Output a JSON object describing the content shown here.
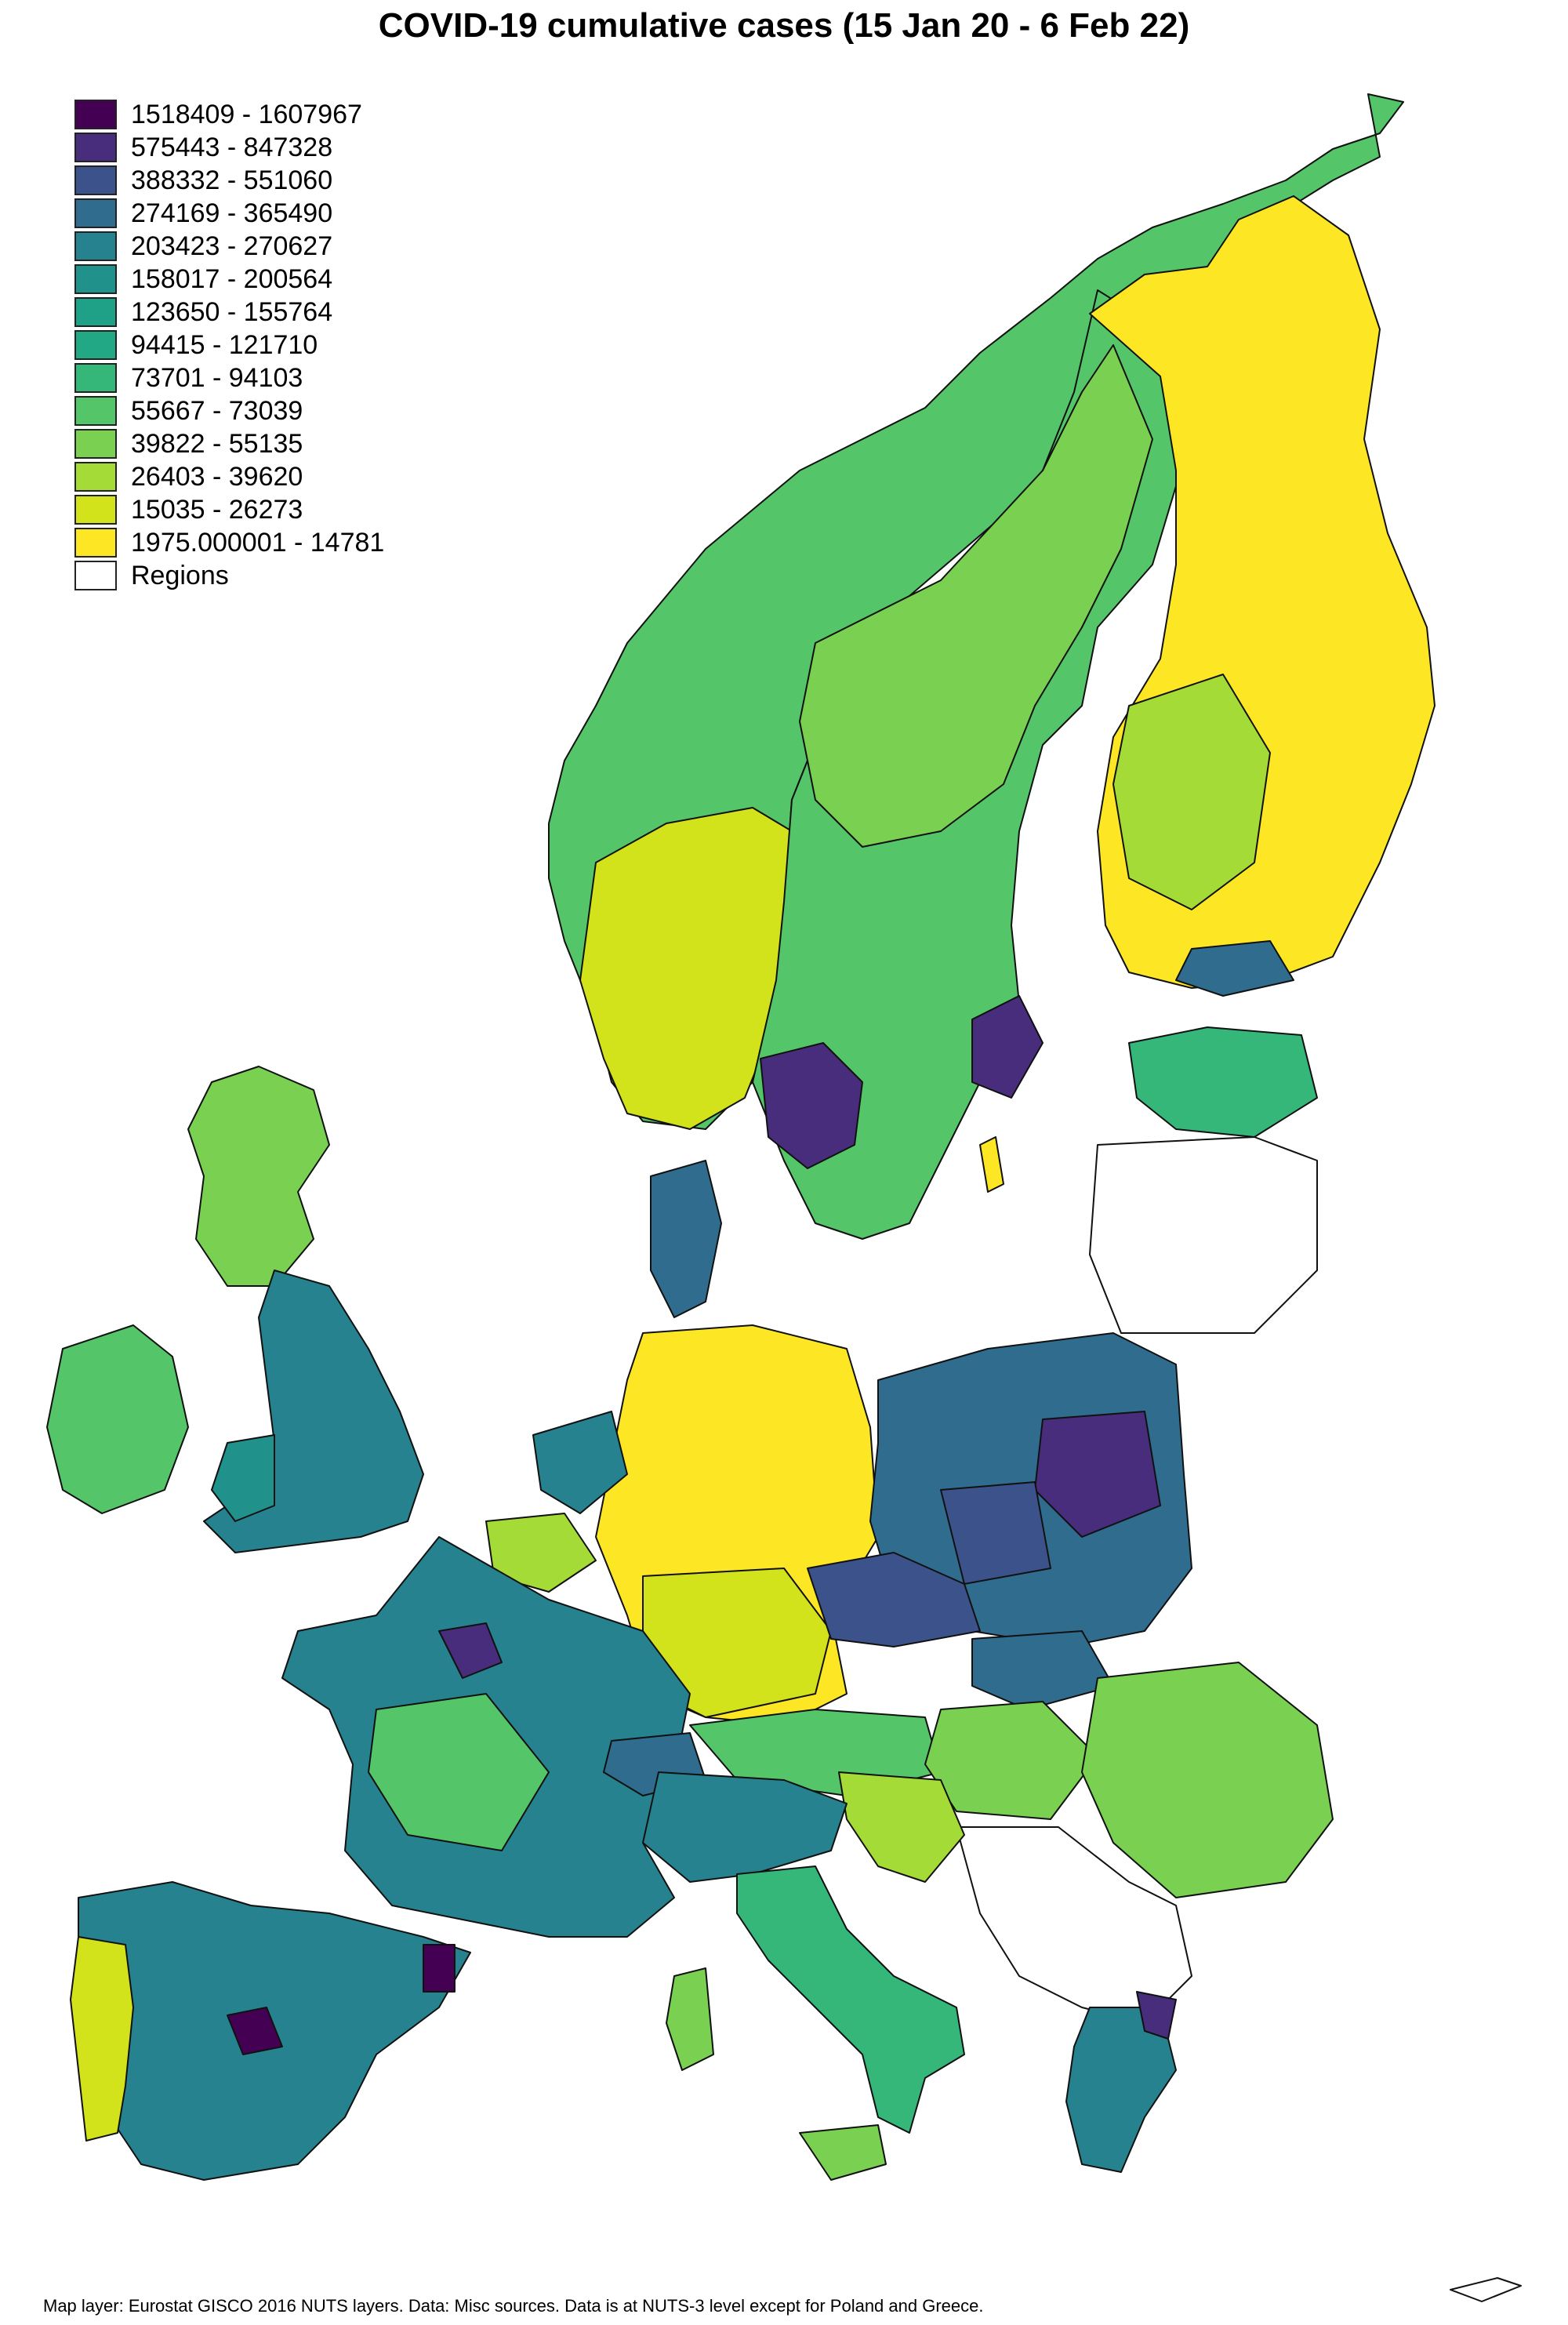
{
  "title": "COVID-19 cumulative cases (15 Jan 20 -  6 Feb 22)",
  "legend": [
    {
      "label": "1518409 - 1607967",
      "color": "#440154"
    },
    {
      "label": "575443 - 847328",
      "color": "#472d7b"
    },
    {
      "label": "388332 - 551060",
      "color": "#3b528b"
    },
    {
      "label": "274169 - 365490",
      "color": "#2f6c8e"
    },
    {
      "label": "203423 - 270627",
      "color": "#26828e"
    },
    {
      "label": "158017 - 200564",
      "color": "#21918c"
    },
    {
      "label": "123650 - 155764",
      "color": "#1fa187"
    },
    {
      "label": "94415 - 121710",
      "color": "#22a884"
    },
    {
      "label": "73701 - 94103",
      "color": "#35b779"
    },
    {
      "label": "55667 - 73039",
      "color": "#54c568"
    },
    {
      "label": "39822 - 55135",
      "color": "#7ad151"
    },
    {
      "label": "26403 - 39620",
      "color": "#a5db36"
    },
    {
      "label": "15035 - 26273",
      "color": "#d2e21b"
    },
    {
      "label": "1975.000001 - 14781",
      "color": "#fde725"
    },
    {
      "label": "Regions",
      "color": "#ffffff"
    }
  ],
  "footer": "Map layer: Eurostat GISCO 2016 NUTS layers. Data: Misc sources. Data is at NUTS-3 level except for Poland and Greece."
}
